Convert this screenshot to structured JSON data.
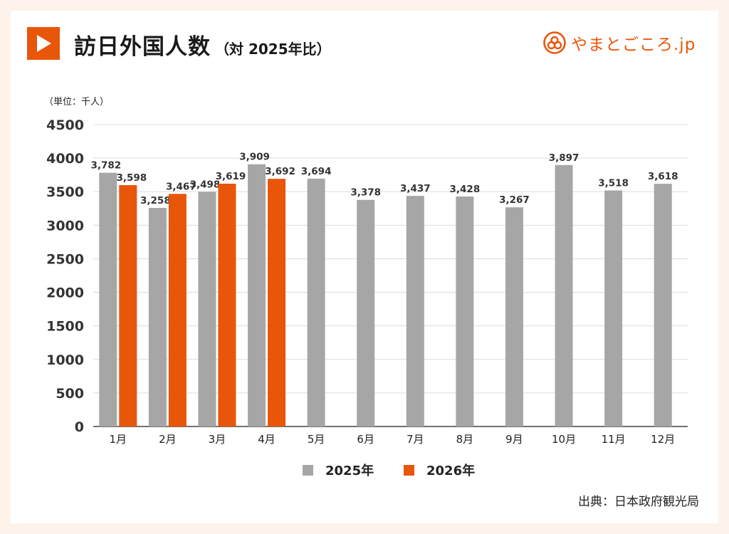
{
  "header": {
    "title": "訪日外国人数",
    "subtitle": "（対 2025年比）",
    "brand": "やまとごころ.jp"
  },
  "colors": {
    "accent": "#e8560a",
    "series_2025": "#a6a6a6",
    "series_2026": "#e8560a",
    "background": "#fdf3ea"
  },
  "chart_data": {
    "type": "bar",
    "title": "訪日外国人数",
    "unit_label": "（単位：千人）",
    "categories": [
      "1月",
      "2月",
      "3月",
      "4月",
      "5月",
      "6月",
      "7月",
      "8月",
      "9月",
      "10月",
      "11月",
      "12月"
    ],
    "series": [
      {
        "name": "2025年",
        "values": [
          3782,
          3258,
          3498,
          3909,
          3694,
          3378,
          3437,
          3428,
          3267,
          3897,
          3518,
          3618
        ]
      },
      {
        "name": "2026年",
        "values": [
          3598,
          3467,
          3619,
          3692,
          null,
          null,
          null,
          null,
          null,
          null,
          null,
          null
        ]
      }
    ],
    "ylim": [
      0,
      4500
    ],
    "yticks": [
      0,
      500,
      1000,
      1500,
      2000,
      2500,
      3000,
      3500,
      4000,
      4500
    ],
    "grid": true,
    "legend": "bottom"
  },
  "footer": {
    "source": "出典：日本政府観光局"
  }
}
